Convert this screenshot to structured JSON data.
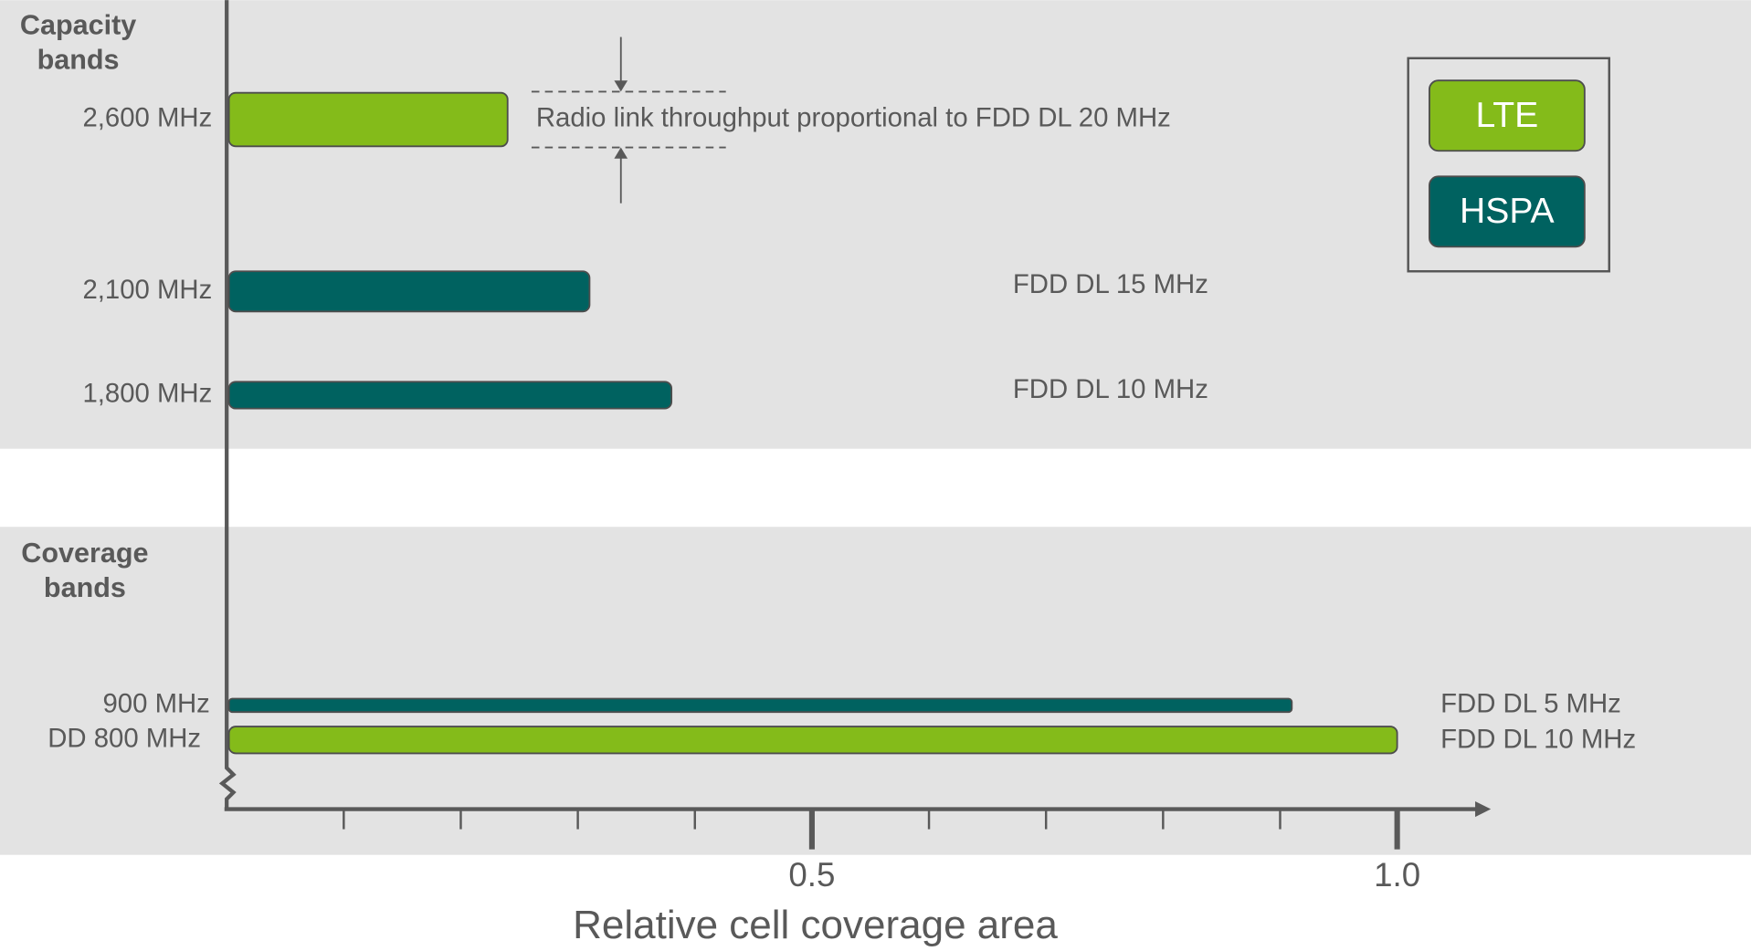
{
  "chart_data": {
    "type": "bar",
    "orientation": "horizontal",
    "groups": [
      {
        "lines": [
          "Capacity",
          "bands"
        ],
        "color": "#e8463f"
      },
      {
        "lines": [
          "Coverage",
          "bands"
        ],
        "color": "#3bb3e0"
      }
    ],
    "categories": [
      "2,600 MHz",
      "2,100 MHz",
      "1,800 MHz",
      "900 MHz",
      "DD 800 MHz"
    ],
    "series": [
      {
        "name": "LTE",
        "color": "#84bb1a",
        "values": [
          0.24,
          null,
          null,
          null,
          1.0
        ]
      },
      {
        "name": "HSPA",
        "color": "#006260",
        "values": [
          null,
          0.31,
          0.38,
          0.91,
          null
        ]
      }
    ],
    "annotations": [
      "Radio link throughput proportional to FDD DL 20 MHz",
      "FDD DL 15 MHz",
      "FDD DL 10 MHz",
      "FDD DL 5 MHz",
      "FDD DL 10 MHz"
    ],
    "xlabel": "Relative cell coverage area",
    "xlim": [
      0,
      1.08
    ],
    "xticks": [
      0.5,
      {
        "value": 1,
        "label": "1.0"
      }
    ],
    "xticks_minor": [
      0.1,
      0.2,
      0.3,
      0.4,
      0.6,
      0.7,
      0.8,
      0.9
    ],
    "legend": "top-right"
  }
}
